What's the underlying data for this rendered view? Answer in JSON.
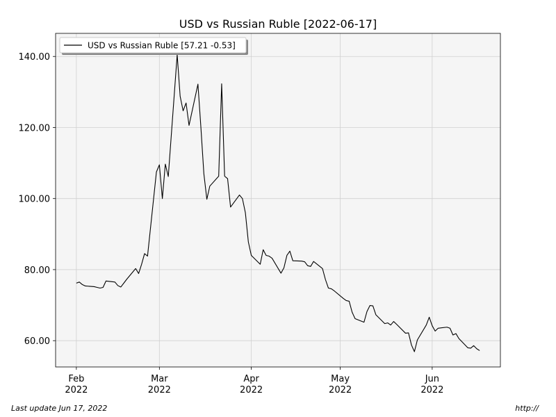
{
  "chart_data": {
    "type": "line",
    "title": "USD vs Russian Ruble [2022-06-17]",
    "footer_left": "Last update Jun 17, 2022",
    "footer_right": "http://",
    "legend": "upper left",
    "grid": true,
    "x": [
      "2022-02-01",
      "2022-02-02",
      "2022-02-03",
      "2022-02-04",
      "2022-02-07",
      "2022-02-08",
      "2022-02-09",
      "2022-02-10",
      "2022-02-11",
      "2022-02-14",
      "2022-02-15",
      "2022-02-16",
      "2022-02-17",
      "2022-02-18",
      "2022-02-21",
      "2022-02-22",
      "2022-02-23",
      "2022-02-24",
      "2022-02-25",
      "2022-02-28",
      "2022-03-01",
      "2022-03-02",
      "2022-03-03",
      "2022-03-04",
      "2022-03-07",
      "2022-03-08",
      "2022-03-09",
      "2022-03-10",
      "2022-03-11",
      "2022-03-14",
      "2022-03-15",
      "2022-03-16",
      "2022-03-17",
      "2022-03-18",
      "2022-03-21",
      "2022-03-22",
      "2022-03-23",
      "2022-03-24",
      "2022-03-25",
      "2022-03-28",
      "2022-03-29",
      "2022-03-30",
      "2022-03-31",
      "2022-04-01",
      "2022-04-04",
      "2022-04-05",
      "2022-04-06",
      "2022-04-07",
      "2022-04-08",
      "2022-04-11",
      "2022-04-12",
      "2022-04-13",
      "2022-04-14",
      "2022-04-15",
      "2022-04-18",
      "2022-04-19",
      "2022-04-20",
      "2022-04-21",
      "2022-04-22",
      "2022-04-25",
      "2022-04-26",
      "2022-04-27",
      "2022-04-28",
      "2022-04-29",
      "2022-05-02",
      "2022-05-03",
      "2022-05-04",
      "2022-05-05",
      "2022-05-06",
      "2022-05-09",
      "2022-05-10",
      "2022-05-11",
      "2022-05-12",
      "2022-05-13",
      "2022-05-16",
      "2022-05-17",
      "2022-05-18",
      "2022-05-19",
      "2022-05-20",
      "2022-05-23",
      "2022-05-24",
      "2022-05-25",
      "2022-05-26",
      "2022-05-27",
      "2022-05-30",
      "2022-05-31",
      "2022-06-01",
      "2022-06-02",
      "2022-06-03",
      "2022-06-06",
      "2022-06-07",
      "2022-06-08",
      "2022-06-09",
      "2022-06-10",
      "2022-06-13",
      "2022-06-14",
      "2022-06-15",
      "2022-06-16",
      "2022-06-17"
    ],
    "series": [
      {
        "name": "USD vs Russian Ruble [57.21 -0.53]",
        "color": "#000000",
        "values": [
          76.2,
          76.5,
          75.8,
          75.4,
          75.2,
          75.0,
          74.8,
          75.0,
          76.8,
          76.5,
          75.5,
          75.1,
          76.2,
          77.3,
          80.3,
          78.9,
          81.5,
          84.5,
          83.8,
          107.5,
          109.5,
          100.0,
          109.7,
          106.2,
          140.5,
          128.8,
          124.7,
          126.9,
          120.6,
          132.2,
          120.0,
          107.0,
          99.8,
          103.5,
          106.3,
          132.3,
          106.3,
          105.6,
          97.6,
          101.0,
          100.0,
          96.0,
          87.8,
          84.0,
          81.5,
          85.6,
          84.0,
          83.8,
          83.2,
          79.0,
          80.5,
          84.0,
          85.2,
          82.5,
          82.4,
          82.2,
          81.1,
          80.9,
          82.3,
          80.3,
          77.2,
          74.8,
          74.6,
          74.0,
          71.9,
          71.3,
          71.1,
          68.0,
          66.2,
          65.2,
          68.2,
          69.9,
          69.8,
          67.3,
          64.8,
          65.0,
          64.4,
          65.4,
          64.6,
          62.1,
          62.2,
          58.8,
          56.9,
          60.2,
          64.4,
          66.6,
          64.2,
          62.7,
          63.5,
          63.8,
          63.5,
          61.6,
          62.0,
          60.6,
          58.0,
          57.9,
          58.6,
          57.74,
          57.21
        ]
      }
    ],
    "xlim": [
      "2022-01-25",
      "2022-06-24"
    ],
    "xticks": [
      {
        "value": "2022-02-01",
        "label": "Feb 2022"
      },
      {
        "value": "2022-03-01",
        "label": "Mar 2022"
      },
      {
        "value": "2022-04-01",
        "label": "Apr 2022"
      },
      {
        "value": "2022-05-01",
        "label": "May 2022"
      },
      {
        "value": "2022-06-01",
        "label": "Jun 2022"
      }
    ],
    "ylim": [
      52.6,
      146.5
    ],
    "yticks": [
      {
        "value": 60,
        "label": "60.00"
      },
      {
        "value": 80,
        "label": "80.00"
      },
      {
        "value": 100,
        "label": "100.00"
      },
      {
        "value": 120,
        "label": "120.00"
      },
      {
        "value": 140,
        "label": "140.00"
      }
    ]
  }
}
